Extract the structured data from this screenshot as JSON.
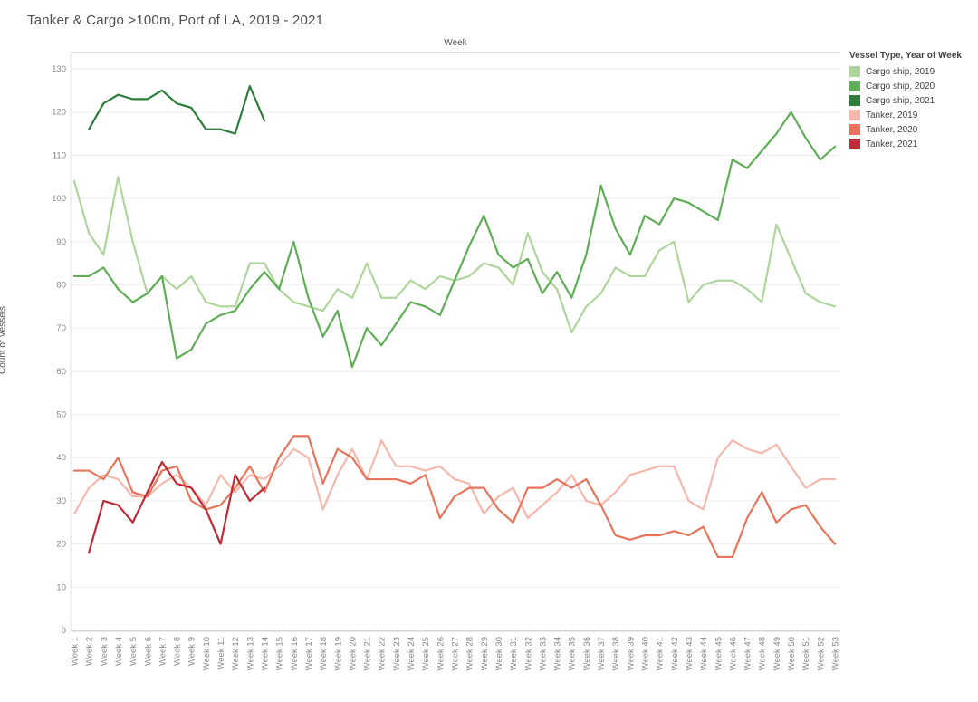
{
  "title": "Tanker & Cargo >100m, Port of LA, 2019 - 2021",
  "legend": {
    "title": "Vessel Type, Year of Week"
  },
  "chart_data": {
    "type": "line",
    "title": "Tanker & Cargo >100m, Port of LA, 2019 - 2021",
    "xlabel": "Week",
    "ylabel": "Count of Vessels",
    "ylim": [
      0,
      130
    ],
    "y_ticks": [
      0,
      10,
      20,
      30,
      40,
      50,
      60,
      70,
      80,
      90,
      100,
      110,
      120,
      130
    ],
    "grid": "horizontal",
    "legend_position": "top-right",
    "x_labels": [
      "Week 1",
      "Week 2",
      "Week 3",
      "Week 4",
      "Week 5",
      "Week 6",
      "Week 7",
      "Week 8",
      "Week 9",
      "Week 10",
      "Week 11",
      "Week 12",
      "Week 13",
      "Week 14",
      "Week 15",
      "Week 16",
      "Week 17",
      "Week 18",
      "Week 19",
      "Week 20",
      "Week 21",
      "Week 22",
      "Week 23",
      "Week 24",
      "Week 25",
      "Week 26",
      "Week 27",
      "Week 28",
      "Week 29",
      "Week 30",
      "Week 31",
      "Week 32",
      "Week 33",
      "Week 34",
      "Week 35",
      "Week 36",
      "Week 37",
      "Week 38",
      "Week 39",
      "Week 40",
      "Week 41",
      "Week 42",
      "Week 43",
      "Week 44",
      "Week 45",
      "Week 46",
      "Week 47",
      "Week 48",
      "Week 49",
      "Week 50",
      "Week 51",
      "Week 52",
      "Week 53"
    ],
    "series": [
      {
        "name": "Cargo ship, 2019",
        "color": "#aed69c",
        "values": [
          104,
          92,
          87,
          105,
          90,
          78,
          82,
          79,
          82,
          76,
          75,
          75,
          85,
          85,
          79,
          76,
          75,
          74,
          79,
          77,
          85,
          77,
          77,
          81,
          79,
          82,
          81,
          82,
          85,
          84,
          80,
          92,
          83,
          79,
          69,
          75,
          78,
          84,
          82,
          82,
          88,
          90,
          76,
          80,
          81,
          81,
          79,
          76,
          94,
          86,
          78,
          76,
          75
        ]
      },
      {
        "name": "Cargo ship, 2020",
        "color": "#5fae57",
        "values": [
          82,
          82,
          84,
          79,
          76,
          78,
          82,
          63,
          65,
          71,
          73,
          74,
          79,
          83,
          79,
          90,
          77,
          68,
          74,
          61,
          70,
          66,
          71,
          76,
          75,
          73,
          81,
          89,
          96,
          87,
          84,
          86,
          78,
          83,
          77,
          87,
          103,
          93,
          87,
          96,
          94,
          100,
          99,
          97,
          95,
          109,
          107,
          111,
          115,
          120,
          114,
          109,
          112
        ]
      },
      {
        "name": "Cargo ship, 2021",
        "color": "#2e7d3c",
        "values": [
          null,
          116,
          122,
          124,
          123,
          123,
          125,
          122,
          121,
          116,
          116,
          115,
          126,
          118,
          null,
          null,
          null,
          null,
          null,
          null,
          null,
          null,
          null,
          null,
          null,
          null,
          null,
          null,
          null,
          null,
          null,
          null,
          null,
          null,
          null,
          null,
          null,
          null,
          null,
          null,
          null,
          null,
          null,
          null,
          null,
          null,
          null,
          null,
          null,
          null,
          null,
          null,
          null
        ]
      },
      {
        "name": "Tanker, 2019",
        "color": "#f6b8ac",
        "values": [
          27,
          33,
          36,
          35,
          31,
          31,
          34,
          36,
          33,
          29,
          36,
          32,
          36,
          35,
          38,
          42,
          40,
          28,
          36,
          42,
          35,
          44,
          38,
          38,
          37,
          38,
          35,
          34,
          27,
          31,
          33,
          26,
          29,
          32,
          36,
          30,
          29,
          32,
          36,
          37,
          38,
          38,
          30,
          28,
          40,
          44,
          42,
          41,
          43,
          38,
          33,
          35,
          35
        ]
      },
      {
        "name": "Tanker, 2020",
        "color": "#e8745c",
        "values": [
          37,
          37,
          35,
          40,
          32,
          31,
          37,
          38,
          30,
          28,
          29,
          33,
          38,
          32,
          40,
          45,
          45,
          34,
          42,
          40,
          35,
          35,
          35,
          34,
          36,
          26,
          31,
          33,
          33,
          28,
          25,
          33,
          33,
          35,
          33,
          35,
          29,
          22,
          21,
          22,
          22,
          23,
          22,
          24,
          17,
          17,
          26,
          32,
          25,
          28,
          29,
          24,
          20
        ]
      },
      {
        "name": "Tanker, 2021",
        "color": "#bf2b36",
        "values": [
          null,
          18,
          30,
          29,
          25,
          32,
          39,
          34,
          33,
          28,
          20,
          36,
          30,
          33,
          null,
          null,
          null,
          null,
          null,
          null,
          null,
          null,
          null,
          null,
          null,
          null,
          null,
          null,
          null,
          null,
          null,
          null,
          null,
          null,
          null,
          null,
          null,
          null,
          null,
          null,
          null,
          null,
          null,
          null,
          null,
          null,
          null,
          null,
          null,
          null,
          null,
          null,
          null
        ]
      }
    ]
  }
}
